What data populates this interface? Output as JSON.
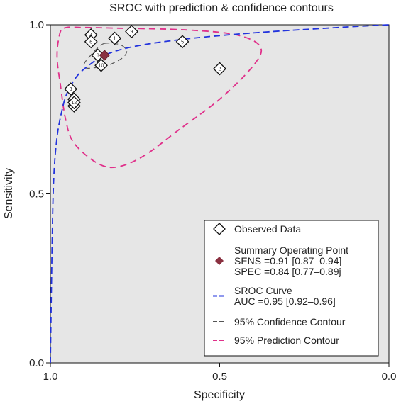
{
  "chart_data": {
    "type": "scatter",
    "title": "SROC with prediction & confidence contours",
    "xlabel": "Specificity",
    "ylabel": "Sensitivity",
    "x_reversed": true,
    "xlim": [
      1.0,
      0.0
    ],
    "ylim": [
      0.0,
      1.0
    ],
    "x_ticks": [
      "1.0",
      "0.5",
      "0.0"
    ],
    "y_ticks": [
      "0.0",
      "0.5",
      "1.0"
    ],
    "plot_background": "#e6e6e6",
    "grid": false,
    "legend_position": "bottom-right",
    "observed": [
      {
        "label": "1",
        "spec": 0.81,
        "sens": 0.96
      },
      {
        "label": "2",
        "spec": 0.5,
        "sens": 0.87
      },
      {
        "label": "3",
        "spec": 0.94,
        "sens": 0.81
      },
      {
        "label": "4",
        "spec": 0.88,
        "sens": 0.97
      },
      {
        "label": "5",
        "spec": 0.61,
        "sens": 0.95
      },
      {
        "label": "6",
        "spec": 0.88,
        "sens": 0.95
      },
      {
        "label": "7",
        "spec": 0.93,
        "sens": 0.78
      },
      {
        "label": "8",
        "spec": 0.86,
        "sens": 0.91
      },
      {
        "label": "9",
        "spec": 0.76,
        "sens": 0.98
      },
      {
        "label": "10",
        "spec": 0.85,
        "sens": 0.88
      },
      {
        "label": "11",
        "spec": 0.93,
        "sens": 0.76
      },
      {
        "label": "12",
        "spec": 0.93,
        "sens": 0.77
      }
    ],
    "summary_point": {
      "spec": 0.84,
      "sens": 0.91
    },
    "sroc_curve": [
      [
        1.0,
        0.0
      ],
      [
        0.995,
        0.35
      ],
      [
        0.99,
        0.55
      ],
      [
        0.98,
        0.67
      ],
      [
        0.965,
        0.75
      ],
      [
        0.95,
        0.8
      ],
      [
        0.92,
        0.85
      ],
      [
        0.88,
        0.885
      ],
      [
        0.84,
        0.91
      ],
      [
        0.78,
        0.93
      ],
      [
        0.7,
        0.945
      ],
      [
        0.6,
        0.958
      ],
      [
        0.5,
        0.968
      ],
      [
        0.4,
        0.976
      ],
      [
        0.3,
        0.983
      ],
      [
        0.2,
        0.989
      ],
      [
        0.1,
        0.995
      ],
      [
        0.0,
        1.0
      ]
    ],
    "confidence_contour": [
      [
        0.84,
        0.945
      ],
      [
        0.8,
        0.943
      ],
      [
        0.78,
        0.932
      ],
      [
        0.775,
        0.918
      ],
      [
        0.79,
        0.9
      ],
      [
        0.83,
        0.88
      ],
      [
        0.86,
        0.874
      ],
      [
        0.895,
        0.872
      ],
      [
        0.9,
        0.885
      ],
      [
        0.885,
        0.905
      ],
      [
        0.862,
        0.93
      ],
      [
        0.84,
        0.945
      ]
    ],
    "prediction_contour": [
      [
        0.96,
        0.99
      ],
      [
        0.9,
        0.992
      ],
      [
        0.8,
        0.99
      ],
      [
        0.6,
        0.985
      ],
      [
        0.45,
        0.97
      ],
      [
        0.38,
        0.935
      ],
      [
        0.4,
        0.88
      ],
      [
        0.5,
        0.78
      ],
      [
        0.62,
        0.69
      ],
      [
        0.72,
        0.615
      ],
      [
        0.8,
        0.58
      ],
      [
        0.86,
        0.59
      ],
      [
        0.93,
        0.65
      ],
      [
        0.955,
        0.72
      ],
      [
        0.97,
        0.82
      ],
      [
        0.98,
        0.9
      ],
      [
        0.975,
        0.96
      ],
      [
        0.96,
        0.99
      ]
    ],
    "legend": [
      {
        "kind": "observed",
        "lines": [
          "Observed Data"
        ]
      },
      {
        "kind": "summary",
        "lines": [
          "Summary Operating Point",
          "SENS =0.91 [0.87–0.94]",
          "SPEC =0.84 [0.77–0.89j"
        ]
      },
      {
        "kind": "sroc",
        "lines": [
          "SROC Curve",
          "AUC =0.95 [0.92–0.96]"
        ]
      },
      {
        "kind": "confidence",
        "lines": [
          "95% Confidence Contour"
        ]
      },
      {
        "kind": "prediction",
        "lines": [
          "95% Prediction Contour"
        ]
      }
    ],
    "colors": {
      "sroc": "#2233dd",
      "confidence": "#555555",
      "prediction": "#e0308a",
      "summary": "#8a3040",
      "observed_edge": "#111111",
      "observed_fill": "#ffffff"
    }
  }
}
